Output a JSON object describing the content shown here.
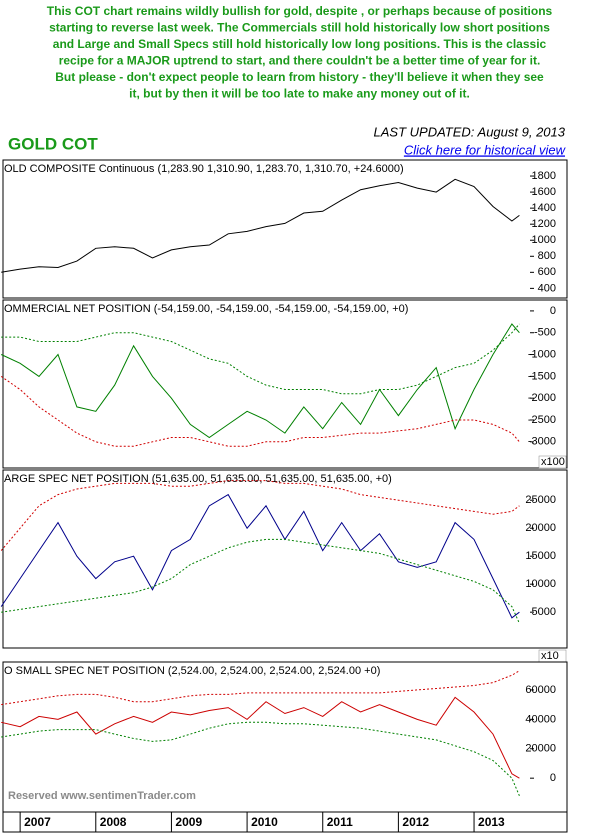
{
  "header": {
    "text": [
      "This COT chart remains wildly bullish for gold, despite , or perhaps because of positions",
      "starting to reverse last week. The Commercials still hold historically low short positions",
      "and Large and Small Specs still hold historically low long positions. This is the classic",
      "recipe for a MAJOR uptrend to start, and there couldn't be a better time of year for it.",
      "But please - don't expect people to learn from history - they'll believe it when they see",
      "it, but by then it will be too late to make any money out  of it."
    ],
    "title": "GOLD COT",
    "updated": "LAST UPDATED:  August 9, 2013",
    "link": "Click here for historical view"
  },
  "footer": "Reserved  www.sentimenTrader.com",
  "chart_data": [
    {
      "type": "line",
      "title": "OLD COMPOSITE Continuous (1,283.90 1,310.90, 1,283.70, 1,310.70, +24.6000)",
      "x": [
        2006.75,
        2007,
        2007.25,
        2007.5,
        2007.75,
        2008,
        2008.25,
        2008.5,
        2008.75,
        2009,
        2009.25,
        2009.5,
        2009.75,
        2010,
        2010.25,
        2010.5,
        2010.75,
        2011,
        2011.25,
        2011.5,
        2011.75,
        2012,
        2012.25,
        2012.5,
        2012.75,
        2013,
        2013.25,
        2013.5,
        2013.6
      ],
      "xlim": [
        2006.8,
        2013.7
      ],
      "ylim": [
        280,
        2000
      ],
      "yticks": [
        400,
        600,
        800,
        1000,
        1200,
        1400,
        1600,
        1800
      ],
      "series": [
        {
          "color": "#000000",
          "style": "solid",
          "values": [
            600,
            640,
            670,
            660,
            740,
            900,
            920,
            900,
            780,
            880,
            920,
            940,
            1080,
            1110,
            1170,
            1210,
            1340,
            1360,
            1500,
            1630,
            1680,
            1720,
            1650,
            1600,
            1760,
            1670,
            1420,
            1240,
            1310
          ]
        }
      ]
    },
    {
      "type": "line",
      "title": "OMMERCIAL NET POSITION (-54,159.00, -54,159.00, -54,159.00, -54,159.00, +0)",
      "multiplier": "x100",
      "x": [
        2006.75,
        2007,
        2007.25,
        2007.5,
        2007.75,
        2008,
        2008.25,
        2008.5,
        2008.75,
        2009,
        2009.25,
        2009.5,
        2009.75,
        2010,
        2010.25,
        2010.5,
        2010.75,
        2011,
        2011.25,
        2011.5,
        2011.75,
        2012,
        2012.25,
        2012.5,
        2012.75,
        2013,
        2013.25,
        2013.5,
        2013.6
      ],
      "xlim": [
        2006.8,
        2013.7
      ],
      "ylim": [
        -3600,
        250
      ],
      "yticks": [
        0,
        -500,
        -1000,
        -1500,
        -2000,
        -2500,
        -3000
      ],
      "series": [
        {
          "color": "#008000",
          "style": "solid",
          "values": [
            -1000,
            -1200,
            -1500,
            -1000,
            -2200,
            -2300,
            -1700,
            -800,
            -1500,
            -2000,
            -2600,
            -2900,
            -2600,
            -2300,
            -2500,
            -2800,
            -2200,
            -2700,
            -2100,
            -2600,
            -1800,
            -2400,
            -1800,
            -1300,
            -2700,
            -1800,
            -1000,
            -300,
            -500
          ]
        },
        {
          "color": "#008000",
          "style": "dashed",
          "values": [
            -600,
            -600,
            -700,
            -700,
            -700,
            -600,
            -500,
            -500,
            -600,
            -700,
            -900,
            -1100,
            -1200,
            -1500,
            -1700,
            -1800,
            -1800,
            -1800,
            -1900,
            -1900,
            -1800,
            -1800,
            -1700,
            -1500,
            -1300,
            -1200,
            -900,
            -500,
            -300
          ]
        },
        {
          "color": "#d00000",
          "style": "dashed",
          "values": [
            -1500,
            -1800,
            -2200,
            -2500,
            -2800,
            -3000,
            -3100,
            -3100,
            -3000,
            -2900,
            -2900,
            -3000,
            -3100,
            -3100,
            -3000,
            -3000,
            -2900,
            -2900,
            -2850,
            -2800,
            -2800,
            -2750,
            -2700,
            -2600,
            -2500,
            -2500,
            -2600,
            -2800,
            -3000
          ]
        }
      ]
    },
    {
      "type": "line",
      "title": "ARGE SPEC NET POSITION (51,635.00, 51,635.00, 51,635.00, 51,635.00, +0)",
      "multiplier": "x10",
      "x": [
        2006.75,
        2007,
        2007.25,
        2007.5,
        2007.75,
        2008,
        2008.25,
        2008.5,
        2008.75,
        2009,
        2009.25,
        2009.5,
        2009.75,
        2010,
        2010.25,
        2010.5,
        2010.75,
        2011,
        2011.25,
        2011.5,
        2011.75,
        2012,
        2012.25,
        2012.5,
        2012.75,
        2013,
        2013.25,
        2013.5,
        2013.6
      ],
      "xlim": [
        2006.8,
        2013.7
      ],
      "ylim": [
        -1400,
        30400
      ],
      "yticks": [
        5000,
        10000,
        15000,
        20000,
        25000
      ],
      "series": [
        {
          "color": "#00008b",
          "style": "solid",
          "values": [
            6000,
            11000,
            16000,
            21000,
            15000,
            11000,
            14000,
            15000,
            9000,
            16000,
            18000,
            24000,
            26000,
            20000,
            24000,
            18000,
            23000,
            16000,
            21000,
            16000,
            19000,
            14000,
            13000,
            14000,
            21000,
            18000,
            11000,
            4000,
            5000
          ]
        },
        {
          "color": "#d00000",
          "style": "dashed",
          "values": [
            16000,
            20000,
            24000,
            26000,
            27000,
            27500,
            28000,
            28000,
            28000,
            27500,
            27500,
            28000,
            28500,
            28500,
            28500,
            28000,
            28000,
            27500,
            27000,
            26000,
            25500,
            25000,
            24500,
            24000,
            23500,
            23000,
            22500,
            23000,
            24000
          ]
        },
        {
          "color": "#008000",
          "style": "dashed",
          "values": [
            5000,
            5500,
            6000,
            6500,
            7000,
            7500,
            8000,
            8500,
            9500,
            11000,
            13500,
            15000,
            16500,
            17500,
            18000,
            18000,
            17500,
            17000,
            16500,
            16000,
            15500,
            14500,
            13500,
            12500,
            11500,
            10500,
            9000,
            6000,
            3000
          ]
        }
      ]
    },
    {
      "type": "line",
      "title": "O SMALL SPEC NET POSITION (2,524.00, 2,524.00, 2,524.00, 2,524.00 +0)",
      "x": [
        2006.75,
        2007,
        2007.25,
        2007.5,
        2007.75,
        2008,
        2008.25,
        2008.5,
        2008.75,
        2009,
        2009.25,
        2009.5,
        2009.75,
        2010,
        2010.25,
        2010.5,
        2010.75,
        2011,
        2011.25,
        2011.5,
        2011.75,
        2012,
        2012.25,
        2012.5,
        2012.75,
        2013,
        2013.25,
        2013.5,
        2013.6
      ],
      "xlim": [
        2006.8,
        2013.7
      ],
      "ylim": [
        -23000,
        79000
      ],
      "yticks": [
        0,
        20000,
        40000,
        60000
      ],
      "xticks": [
        2007,
        2008,
        2009,
        2010,
        2011,
        2012,
        2013
      ],
      "series": [
        {
          "color": "#cc0000",
          "style": "solid",
          "values": [
            38000,
            35000,
            42000,
            40000,
            45000,
            30000,
            37000,
            42000,
            38000,
            45000,
            43000,
            46000,
            48000,
            40000,
            52000,
            44000,
            48000,
            42000,
            52000,
            45000,
            50000,
            45000,
            40000,
            36000,
            55000,
            45000,
            30000,
            3000,
            0
          ]
        },
        {
          "color": "#d00000",
          "style": "dashed",
          "values": [
            50000,
            52000,
            54000,
            56000,
            57000,
            57000,
            55000,
            52000,
            52000,
            54000,
            56000,
            57000,
            57000,
            58000,
            58000,
            58000,
            58000,
            58000,
            58000,
            58000,
            58000,
            59000,
            60000,
            61000,
            62000,
            63000,
            65000,
            70000,
            73000
          ]
        },
        {
          "color": "#008000",
          "style": "dashed",
          "values": [
            28000,
            30000,
            32000,
            33000,
            33000,
            33000,
            30000,
            27000,
            25000,
            26000,
            30000,
            34000,
            37000,
            38000,
            38000,
            37000,
            37000,
            36000,
            35000,
            34000,
            32000,
            30000,
            28000,
            26000,
            22000,
            18000,
            12000,
            0,
            -12000
          ]
        }
      ]
    }
  ]
}
